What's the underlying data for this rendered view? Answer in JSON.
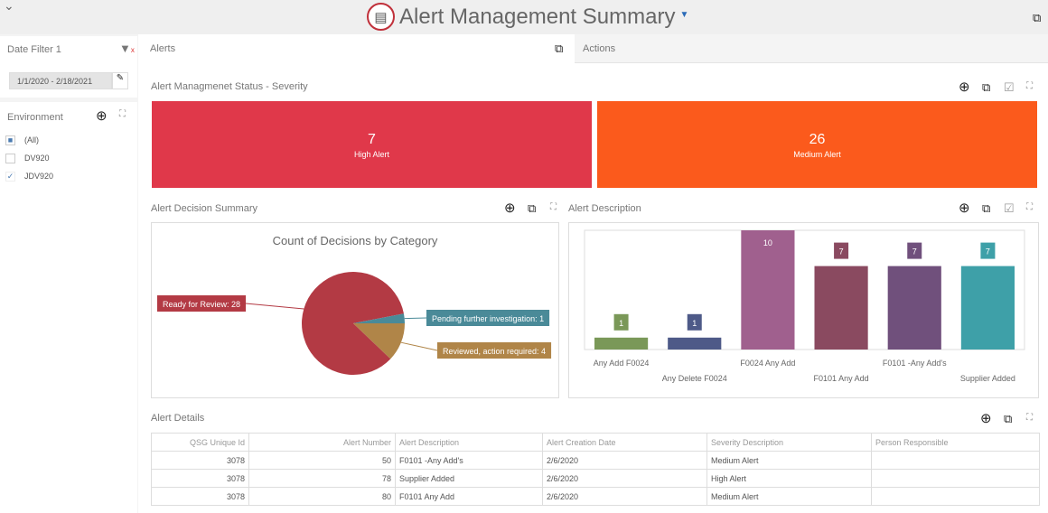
{
  "header": {
    "title": "Alert Management Summary"
  },
  "sidebar": {
    "date_filter": {
      "label": "Date Filter 1",
      "value": "1/1/2020 - 2/18/2021"
    },
    "environment": {
      "label": "Environment",
      "items": [
        {
          "label": "(All)",
          "state": "partial"
        },
        {
          "label": "DV920",
          "state": "unchecked"
        },
        {
          "label": "JDV920",
          "state": "checked"
        }
      ]
    }
  },
  "tabs": [
    {
      "label": "Alerts"
    },
    {
      "label": "Actions"
    }
  ],
  "severity": {
    "title": "Alert Managmenet Status - Severity",
    "tiles": [
      {
        "value": "7",
        "label": "High Alert",
        "color": "#e0384a"
      },
      {
        "value": "26",
        "label": "Medium Alert",
        "color": "#fb5a1c"
      }
    ]
  },
  "decision": {
    "title": "Alert Decision Summary"
  },
  "description": {
    "title": "Alert Description"
  },
  "details": {
    "title": "Alert Details",
    "columns": [
      "QSG Unique Id",
      "Alert Number",
      "Alert Description",
      "Alert Creation Date",
      "Severity Description",
      "Person Responsible"
    ],
    "rows": [
      [
        "3078",
        "50",
        "F0101 -Any Add's",
        "2/6/2020",
        "Medium Alert",
        ""
      ],
      [
        "3078",
        "78",
        "Supplier Added",
        "2/6/2020",
        "High Alert",
        ""
      ],
      [
        "3078",
        "80",
        "F0101 Any Add",
        "2/6/2020",
        "Medium Alert",
        ""
      ]
    ]
  },
  "chart_data": [
    {
      "type": "pie",
      "title": "Count of Decisions by Category",
      "labels": [
        "Ready for Review",
        "Pending further investigation",
        "Reviewed, action required"
      ],
      "values": [
        28,
        1,
        4
      ],
      "colors": [
        "#b33a44",
        "#4a8a98",
        "#b08548"
      ],
      "data_labels": [
        "Ready for Review: 28",
        "Pending further investigation: 1",
        "Reviewed, action required: 4"
      ]
    },
    {
      "type": "bar",
      "categories": [
        "Any Add F0024",
        "Any Delete F0024",
        "F0024 Any Add",
        "F0101 Any Add",
        "F0101 -Any Add's",
        "Supplier Added"
      ],
      "values": [
        1,
        1,
        10,
        7,
        7,
        7
      ],
      "colors": [
        "#7a9858",
        "#4e5a88",
        "#a0608e",
        "#8a4a60",
        "#70507c",
        "#3ea0a8"
      ],
      "ylim": [
        0,
        10
      ]
    }
  ]
}
